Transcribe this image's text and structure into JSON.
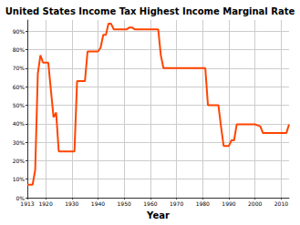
{
  "chart_data": {
    "type": "line",
    "title": "United States Income Tax Highest Income Marginal Rate",
    "xlabel": "Year",
    "x": [
      1913,
      1914,
      1915,
      1916,
      1917,
      1918,
      1919,
      1920,
      1921,
      1922,
      1923,
      1924,
      1925,
      1926,
      1927,
      1928,
      1929,
      1930,
      1931,
      1932,
      1933,
      1934,
      1935,
      1936,
      1937,
      1938,
      1939,
      1940,
      1941,
      1942,
      1943,
      1944,
      1945,
      1946,
      1947,
      1948,
      1949,
      1950,
      1951,
      1952,
      1953,
      1954,
      1955,
      1956,
      1957,
      1958,
      1959,
      1960,
      1961,
      1962,
      1963,
      1964,
      1965,
      1966,
      1967,
      1968,
      1969,
      1970,
      1971,
      1972,
      1973,
      1974,
      1975,
      1976,
      1977,
      1978,
      1979,
      1980,
      1981,
      1982,
      1983,
      1984,
      1985,
      1986,
      1987,
      1988,
      1989,
      1990,
      1991,
      1992,
      1993,
      1994,
      1995,
      1996,
      1997,
      1998,
      1999,
      2000,
      2001,
      2002,
      2003,
      2004,
      2005,
      2006,
      2007,
      2008,
      2009,
      2010,
      2011,
      2012,
      2013
    ],
    "values": [
      7,
      7,
      7,
      15,
      67,
      77,
      73,
      73,
      73,
      58,
      43.5,
      46,
      25,
      25,
      25,
      25,
      25,
      25,
      25,
      63,
      63,
      63,
      63,
      79,
      79,
      79,
      79,
      79,
      81.1,
      88,
      88,
      94,
      94,
      91,
      91,
      91,
      91,
      91,
      91,
      92,
      92,
      91,
      91,
      91,
      91,
      91,
      91,
      91,
      91,
      91,
      91,
      77,
      70,
      70,
      70,
      70,
      70,
      70,
      70,
      70,
      70,
      70,
      70,
      70,
      70,
      70,
      70,
      70,
      70,
      50,
      50,
      50,
      50,
      50,
      38.5,
      28,
      28,
      28,
      31,
      31,
      39.6,
      39.6,
      39.6,
      39.6,
      39.6,
      39.6,
      39.6,
      39.6,
      39.1,
      38.6,
      35,
      35,
      35,
      35,
      35,
      35,
      35,
      35,
      35,
      35,
      39.6
    ],
    "color": "#ff4500",
    "xlim": [
      1913,
      2013
    ],
    "xticks": [
      1913,
      1920,
      1930,
      1940,
      1950,
      1960,
      1970,
      1980,
      1990,
      2000,
      2010
    ],
    "ylim": [
      0,
      96
    ],
    "yticks": [
      {
        "value": 0,
        "label": "0%"
      },
      {
        "value": 10,
        "label": "10%"
      },
      {
        "value": 20,
        "label": "20%"
      },
      {
        "value": 30,
        "label": "30%"
      },
      {
        "value": 40,
        "label": "40%"
      },
      {
        "value": 50,
        "label": "50%"
      },
      {
        "value": 60,
        "label": "60%"
      },
      {
        "value": 70,
        "label": "70%"
      },
      {
        "value": 80,
        "label": "80%"
      },
      {
        "value": 90,
        "label": "90%"
      }
    ],
    "grid": true
  }
}
